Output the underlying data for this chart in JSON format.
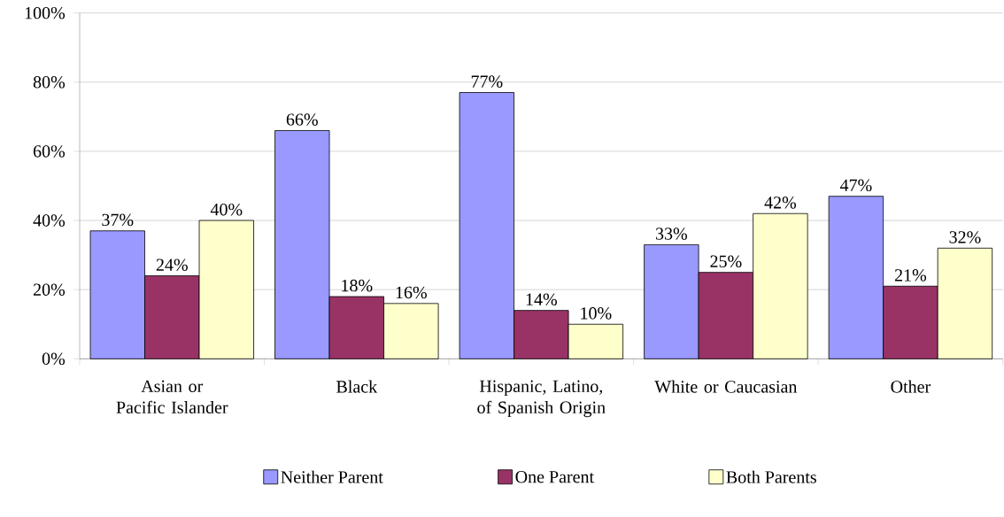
{
  "chart_data": {
    "type": "bar",
    "categories": [
      "Asian or Pacific Islander",
      "Black",
      "Hispanic, Latino, of Spanish Origin",
      "White or Caucasian",
      "Other"
    ],
    "series": [
      {
        "name": "Neither Parent",
        "color": "#9999ff",
        "values": [
          37,
          66,
          77,
          33,
          47
        ],
        "value_labels": [
          "37%",
          "66%",
          "77%",
          "33%",
          "47%"
        ]
      },
      {
        "name": "One Parent",
        "color": "#993366",
        "values": [
          24,
          18,
          14,
          25,
          21
        ],
        "value_labels": [
          "24%",
          "18%",
          "14%",
          "25%",
          "21%"
        ]
      },
      {
        "name": "Both Parents",
        "color": "#ffffcc",
        "values": [
          40,
          16,
          10,
          42,
          32
        ],
        "value_labels": [
          "40%",
          "16%",
          "10%",
          "42%",
          "32%"
        ]
      }
    ],
    "ylim": [
      0,
      100
    ],
    "yticks": [
      {
        "value": 0,
        "label": "0%"
      },
      {
        "value": 20,
        "label": "20%"
      },
      {
        "value": 40,
        "label": "40%"
      },
      {
        "value": 60,
        "label": "60%"
      },
      {
        "value": 80,
        "label": "80%"
      },
      {
        "value": 100,
        "label": "100%"
      }
    ],
    "grid": "y",
    "legend": "bottom"
  }
}
